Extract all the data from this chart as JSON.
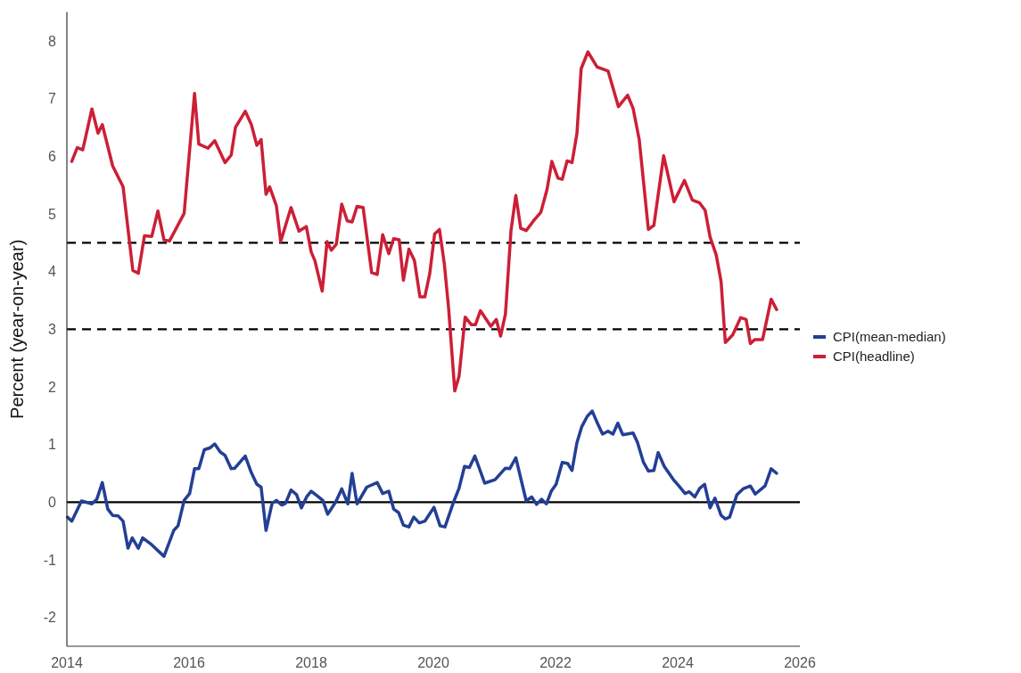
{
  "chart_data": {
    "type": "line",
    "ylabel": "Percent (year-on-year)",
    "xlim": [
      2014,
      2026
    ],
    "xticks": [
      2014,
      2016,
      2018,
      2020,
      2022,
      2024,
      2026
    ],
    "ylim": [
      -2.5,
      8.5
    ],
    "yticks": [
      -2,
      -1,
      0,
      1,
      2,
      3,
      4,
      5,
      6,
      7,
      8
    ],
    "grid": false,
    "legend": "right",
    "line_style": "solid",
    "marker": "none",
    "ref_lines": [
      {
        "axis": "y",
        "value": 4.5,
        "color": "#000000",
        "line_style": "dashed"
      },
      {
        "axis": "y",
        "value": 3,
        "color": "#000000",
        "line_style": "dashed"
      },
      {
        "axis": "y",
        "value": 0,
        "color": "#000000",
        "line_style": "solid"
      }
    ],
    "series": [
      {
        "name": "CPI(mean-median)",
        "color": "#233f95",
        "x": [
          2014.01,
          2014.08,
          2014.24,
          2014.41,
          2014.49,
          2014.58,
          2014.67,
          2014.75,
          2014.84,
          2014.92,
          2015.0,
          2015.07,
          2015.17,
          2015.24,
          2015.39,
          2015.59,
          2015.75,
          2015.82,
          2015.92,
          2016.01,
          2016.09,
          2016.16,
          2016.25,
          2016.34,
          2016.42,
          2016.51,
          2016.59,
          2016.69,
          2016.75,
          2016.92,
          2017.02,
          2017.11,
          2017.18,
          2017.26,
          2017.36,
          2017.43,
          2017.52,
          2017.58,
          2017.67,
          2017.76,
          2017.84,
          2017.93,
          2018.0,
          2018.11,
          2018.19,
          2018.27,
          2018.4,
          2018.5,
          2018.6,
          2018.67,
          2018.75,
          2018.91,
          2019.08,
          2019.17,
          2019.27,
          2019.35,
          2019.43,
          2019.51,
          2019.6,
          2019.68,
          2019.77,
          2019.86,
          2020.01,
          2020.11,
          2020.19,
          2020.33,
          2020.42,
          2020.51,
          2020.59,
          2020.68,
          2020.84,
          2021.01,
          2021.18,
          2021.25,
          2021.35,
          2021.52,
          2021.61,
          2021.69,
          2021.77,
          2021.85,
          2021.93,
          2022.01,
          2022.11,
          2022.2,
          2022.27,
          2022.35,
          2022.43,
          2022.52,
          2022.6,
          2022.69,
          2022.77,
          2022.86,
          2022.94,
          2023.02,
          2023.1,
          2023.27,
          2023.34,
          2023.44,
          2023.52,
          2023.61,
          2023.68,
          2023.78,
          2023.93,
          2024.02,
          2024.12,
          2024.19,
          2024.28,
          2024.36,
          2024.44,
          2024.53,
          2024.61,
          2024.71,
          2024.78,
          2024.85,
          2024.97,
          2025.07,
          2025.19,
          2025.27,
          2025.43,
          2025.53,
          2025.62
        ],
        "values": [
          -0.26,
          -0.33,
          0.02,
          -0.03,
          0.05,
          0.34,
          -0.12,
          -0.23,
          -0.24,
          -0.33,
          -0.8,
          -0.62,
          -0.8,
          -0.62,
          -0.74,
          -0.94,
          -0.49,
          -0.41,
          0.03,
          0.15,
          0.58,
          0.58,
          0.91,
          0.94,
          1.01,
          0.87,
          0.81,
          0.58,
          0.59,
          0.8,
          0.51,
          0.31,
          0.26,
          -0.49,
          -0.02,
          0.03,
          -0.05,
          -0.02,
          0.21,
          0.13,
          -0.1,
          0.1,
          0.19,
          0.1,
          0.03,
          -0.21,
          0.0,
          0.23,
          -0.03,
          0.5,
          -0.03,
          0.26,
          0.34,
          0.15,
          0.19,
          -0.12,
          -0.18,
          -0.4,
          -0.43,
          -0.26,
          -0.36,
          -0.33,
          -0.09,
          -0.41,
          -0.43,
          0.0,
          0.24,
          0.62,
          0.6,
          0.8,
          0.33,
          0.39,
          0.59,
          0.58,
          0.77,
          0.02,
          0.09,
          -0.04,
          0.05,
          -0.03,
          0.19,
          0.31,
          0.69,
          0.67,
          0.55,
          1.03,
          1.31,
          1.49,
          1.58,
          1.36,
          1.18,
          1.23,
          1.18,
          1.37,
          1.17,
          1.2,
          1.04,
          0.69,
          0.54,
          0.55,
          0.86,
          0.62,
          0.39,
          0.28,
          0.15,
          0.18,
          0.09,
          0.24,
          0.31,
          -0.1,
          0.07,
          -0.23,
          -0.29,
          -0.26,
          0.13,
          0.23,
          0.28,
          0.14,
          0.28,
          0.58,
          0.5
        ]
      },
      {
        "name": "CPI(headline)",
        "color": "#cc1f36",
        "x": [
          2014.08,
          2014.17,
          2014.26,
          2014.41,
          2014.51,
          2014.58,
          2014.75,
          2014.92,
          2015.08,
          2015.17,
          2015.27,
          2015.39,
          2015.49,
          2015.59,
          2015.68,
          2015.92,
          2016.09,
          2016.16,
          2016.31,
          2016.42,
          2016.59,
          2016.69,
          2016.76,
          2016.92,
          2017.02,
          2017.11,
          2017.18,
          2017.26,
          2017.32,
          2017.43,
          2017.5,
          2017.67,
          2017.8,
          2017.92,
          2018.0,
          2018.06,
          2018.18,
          2018.26,
          2018.33,
          2018.41,
          2018.5,
          2018.59,
          2018.67,
          2018.75,
          2018.85,
          2018.99,
          2019.08,
          2019.17,
          2019.27,
          2019.35,
          2019.44,
          2019.51,
          2019.6,
          2019.69,
          2019.78,
          2019.86,
          2019.94,
          2020.02,
          2020.1,
          2020.18,
          2020.25,
          2020.35,
          2020.42,
          2020.52,
          2020.62,
          2020.69,
          2020.77,
          2020.86,
          2020.94,
          2021.03,
          2021.1,
          2021.18,
          2021.27,
          2021.35,
          2021.43,
          2021.52,
          2021.64,
          2021.76,
          2021.86,
          2021.94,
          2022.04,
          2022.11,
          2022.19,
          2022.27,
          2022.35,
          2022.42,
          2022.53,
          2022.68,
          2022.86,
          2023.03,
          2023.18,
          2023.27,
          2023.37,
          2023.52,
          2023.61,
          2023.77,
          2023.94,
          2024.11,
          2024.24,
          2024.36,
          2024.45,
          2024.53,
          2024.63,
          2024.71,
          2024.78,
          2024.9,
          2025.03,
          2025.12,
          2025.19,
          2025.26,
          2025.39,
          2025.53,
          2025.62
        ],
        "values": [
          5.91,
          6.15,
          6.11,
          6.82,
          6.4,
          6.55,
          5.83,
          5.47,
          4.02,
          3.97,
          4.62,
          4.61,
          5.05,
          4.55,
          4.53,
          5.01,
          7.09,
          6.21,
          6.14,
          6.27,
          5.89,
          6.02,
          6.5,
          6.78,
          6.55,
          6.19,
          6.29,
          5.34,
          5.47,
          5.14,
          4.52,
          5.11,
          4.7,
          4.78,
          4.34,
          4.19,
          3.66,
          4.52,
          4.37,
          4.47,
          5.17,
          4.88,
          4.86,
          5.13,
          5.11,
          3.98,
          3.95,
          4.64,
          4.31,
          4.57,
          4.55,
          3.85,
          4.39,
          4.19,
          3.56,
          3.56,
          3.96,
          4.65,
          4.73,
          4.13,
          3.36,
          1.93,
          2.18,
          3.21,
          3.08,
          3.08,
          3.32,
          3.18,
          3.05,
          3.17,
          2.88,
          3.26,
          4.7,
          5.32,
          4.75,
          4.71,
          4.88,
          5.03,
          5.42,
          5.91,
          5.62,
          5.6,
          5.92,
          5.89,
          6.39,
          7.52,
          7.81,
          7.55,
          7.48,
          6.86,
          7.06,
          6.83,
          6.29,
          4.73,
          4.8,
          6.01,
          5.21,
          5.58,
          5.24,
          5.19,
          5.06,
          4.6,
          4.29,
          3.83,
          2.77,
          2.9,
          3.2,
          3.17,
          2.75,
          2.82,
          2.82,
          3.52,
          3.34
        ]
      }
    ]
  }
}
